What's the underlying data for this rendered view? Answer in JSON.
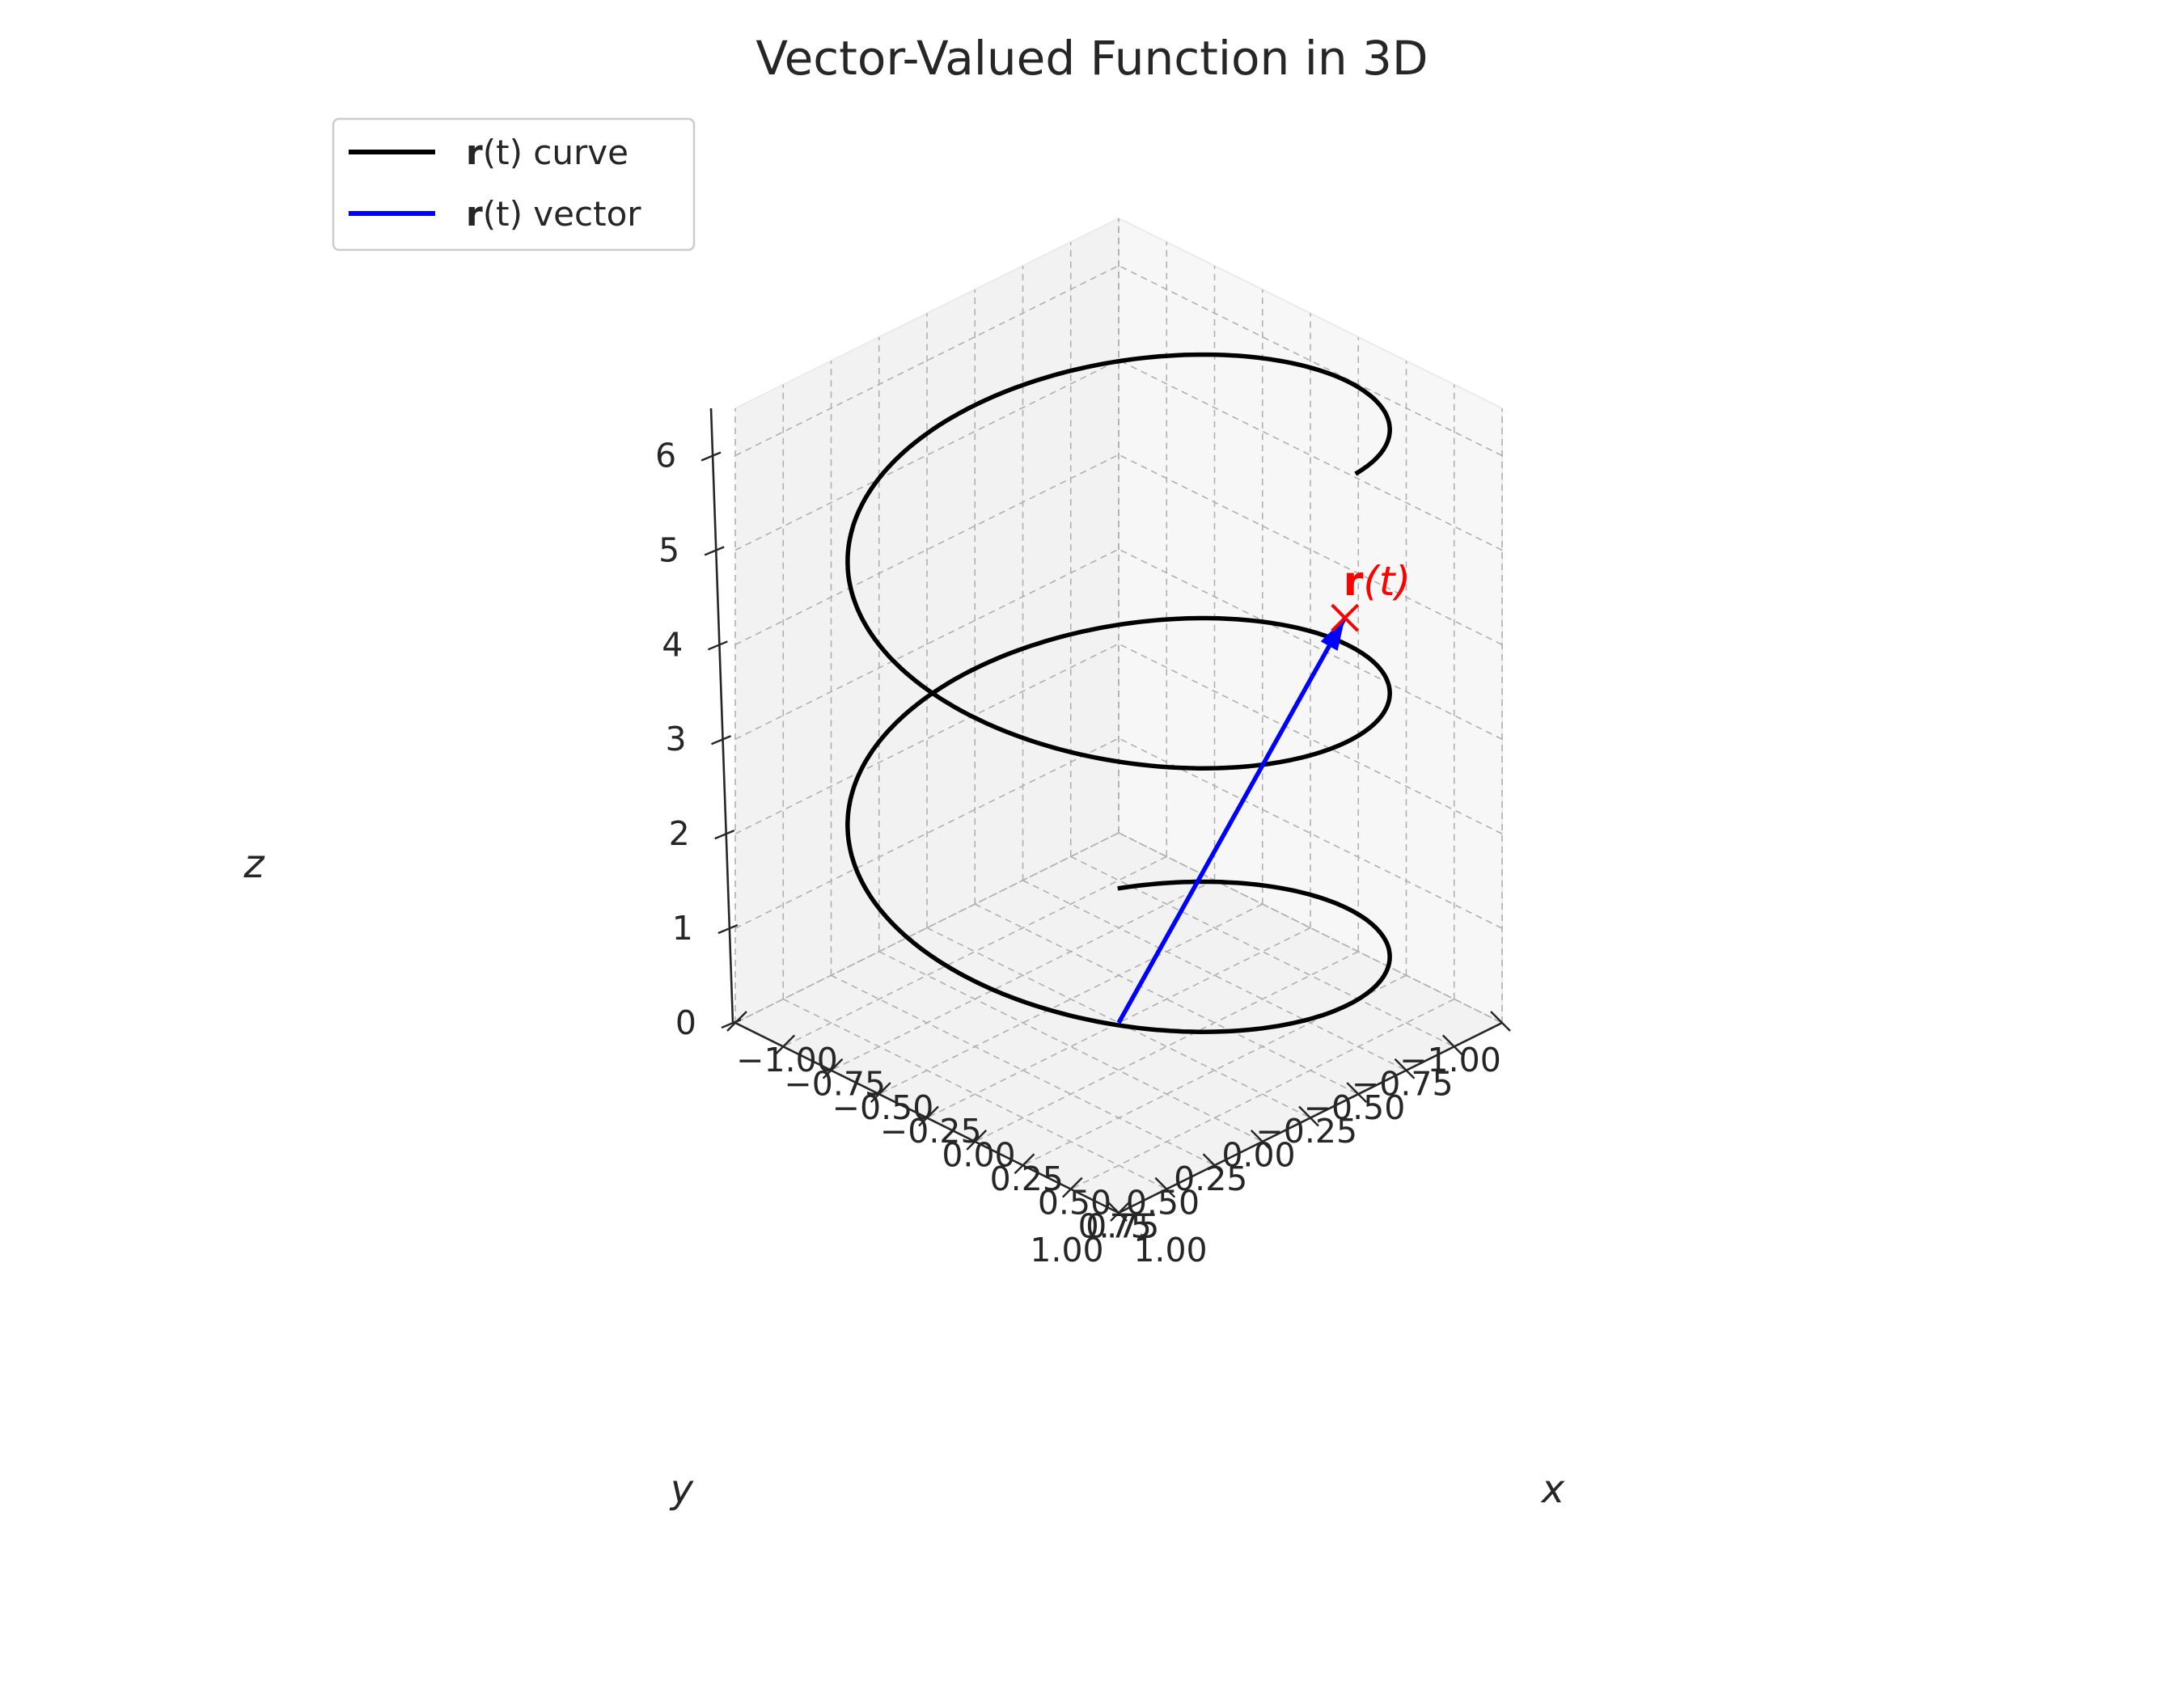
{
  "chart_data": {
    "type": "line",
    "projection": "3d",
    "title": "Vector-Valued Function in 3D",
    "xlabel": "x",
    "ylabel": "y",
    "zlabel": "z",
    "xlim": [
      -1.0,
      1.0
    ],
    "ylim": [
      -1.0,
      1.0
    ],
    "zlim": [
      0,
      6.5
    ],
    "xticks": [
      "−1.00",
      "−0.75",
      "−0.50",
      "−0.25",
      "0.00",
      "0.25",
      "0.50",
      "0.75",
      "1.00"
    ],
    "yticks": [
      "−1.00",
      "−0.75",
      "−0.50",
      "−0.25",
      "0.00",
      "0.25",
      "0.50",
      "0.75",
      "1.00"
    ],
    "zticks": [
      "0",
      "1",
      "2",
      "3",
      "4",
      "5",
      "6"
    ],
    "grid": true,
    "legend_position": "upper-left",
    "series": [
      {
        "name": "r(t) curve",
        "legend_bold": "r",
        "legend_rest": "(t) curve",
        "color": "#000000",
        "kind": "helix",
        "x": "cos(t)",
        "y": "sin(t)",
        "z": "t",
        "t_range": [
          0,
          5.0
        ]
      },
      {
        "name": "r(t) vector",
        "legend_bold": "r",
        "legend_rest": "(t) vector",
        "color": "#0000ff",
        "kind": "arrow",
        "from": [
          0,
          0,
          0
        ],
        "to": [
          0.2,
          -0.98,
          3.5
        ]
      }
    ],
    "annotation": {
      "text_bold": "r",
      "text_rest": "(t)",
      "color": "#ff0000",
      "marker": "x",
      "point": [
        0.2,
        -0.98,
        3.5
      ]
    }
  }
}
